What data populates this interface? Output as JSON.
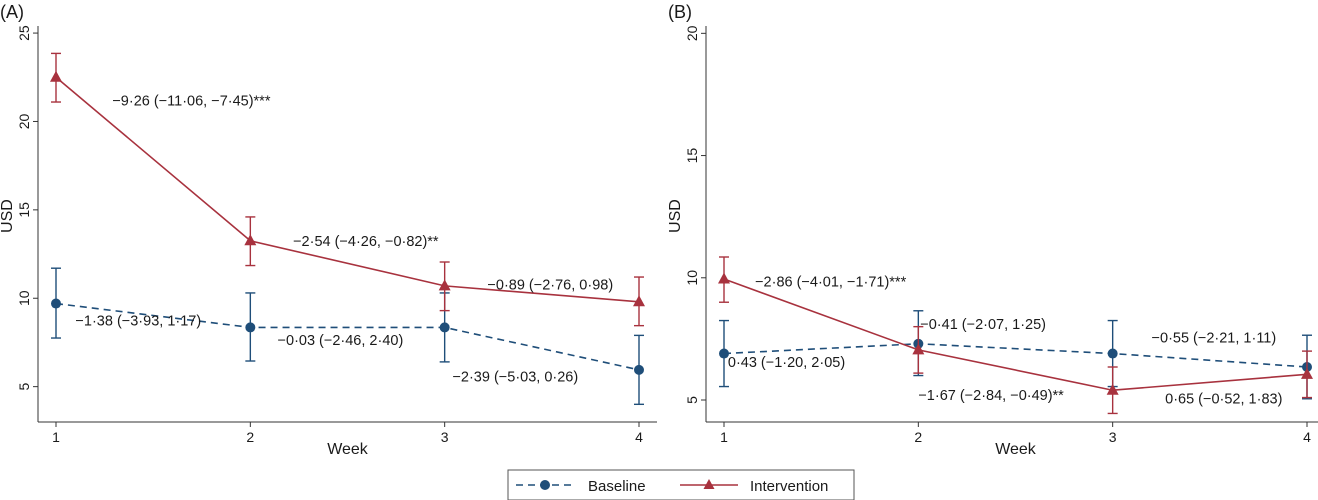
{
  "colors": {
    "baseline": "#1f4e79",
    "intervention": "#a8323e",
    "axis": "#333333"
  },
  "legend": {
    "position": "bottom-center",
    "baseline": "Baseline",
    "intervention": "Intervention"
  },
  "chart_data": [
    {
      "type": "line",
      "panel_label": "(A)",
      "xlabel": "Week",
      "ylabel": "USD",
      "x": [
        1,
        2,
        3,
        4
      ],
      "x_ticks": [
        "1",
        "2",
        "3",
        "4"
      ],
      "xlim": [
        1,
        4
      ],
      "ylim": [
        3,
        25.4
      ],
      "y_ticks": [
        5,
        10,
        15,
        20,
        25
      ],
      "grid": false,
      "series": [
        {
          "name": "Baseline",
          "style": "dashed",
          "marker": "circle",
          "values": [
            9.7,
            8.35,
            8.35,
            5.95
          ],
          "lower": [
            7.75,
            6.45,
            6.4,
            4.0
          ],
          "upper": [
            11.7,
            10.3,
            10.3,
            7.9
          ]
        },
        {
          "name": "Intervention",
          "style": "solid",
          "marker": "triangle",
          "values": [
            22.5,
            13.25,
            10.7,
            9.8
          ],
          "lower": [
            21.1,
            11.85,
            9.3,
            8.45
          ],
          "upper": [
            23.85,
            14.6,
            12.05,
            11.2
          ]
        }
      ],
      "annotations": [
        {
          "text": "−9·26 (−11·06, −7·45)***",
          "x": 1.29,
          "y": 20.9
        },
        {
          "text": "−2·54 (−4·26, −0·82)**",
          "x": 2.22,
          "y": 12.95
        },
        {
          "text": "−0·89 (−2·76, 0·98)",
          "x": 3.22,
          "y": 10.5
        },
        {
          "text": "−1·38 (−3·93, 1·17)",
          "x": 1.1,
          "y": 8.45
        },
        {
          "text": "−0·03 (−2·46, 2·40)",
          "x": 2.14,
          "y": 7.35
        },
        {
          "text": "−2·39 (−5·03, 0·26)",
          "x": 3.04,
          "y": 5.3
        }
      ]
    },
    {
      "type": "line",
      "panel_label": "(B)",
      "xlabel": "Week",
      "ylabel": "USD",
      "x": [
        1,
        2,
        3,
        4
      ],
      "x_ticks": [
        "1",
        "2",
        "3",
        "4"
      ],
      "xlim": [
        1,
        4
      ],
      "ylim": [
        4.1,
        20.3
      ],
      "y_ticks": [
        5,
        10,
        15,
        20
      ],
      "grid": false,
      "series": [
        {
          "name": "Baseline",
          "style": "dashed",
          "marker": "circle",
          "values": [
            6.9,
            7.3,
            6.9,
            6.35
          ],
          "lower": [
            5.55,
            6.0,
            5.55,
            5.05
          ],
          "upper": [
            8.25,
            8.65,
            8.25,
            7.65
          ]
        },
        {
          "name": "Intervention",
          "style": "solid",
          "marker": "triangle",
          "values": [
            9.95,
            7.05,
            5.4,
            6.05
          ],
          "lower": [
            9.0,
            6.1,
            4.45,
            5.1
          ],
          "upper": [
            10.85,
            8.0,
            6.35,
            7.0
          ]
        }
      ],
      "annotations": [
        {
          "text": "−2·86 (−4·01, −1·71)***",
          "x": 1.16,
          "y": 9.65
        },
        {
          "text": "−0·41 (−2·07, 1·25)",
          "x": 2.01,
          "y": 7.9
        },
        {
          "text": "−0·55 (−2·21, 1·11)",
          "x": 3.2,
          "y": 7.35
        },
        {
          "text": "0·43 (−1·20, 2·05)",
          "x": 1.02,
          "y": 6.35
        },
        {
          "text": "−1·67 (−2·84, −0·49)**",
          "x": 2.0,
          "y": 5.0
        },
        {
          "text": "0·65 (−0·52, 1·83)",
          "x": 3.27,
          "y": 4.85
        }
      ]
    }
  ]
}
